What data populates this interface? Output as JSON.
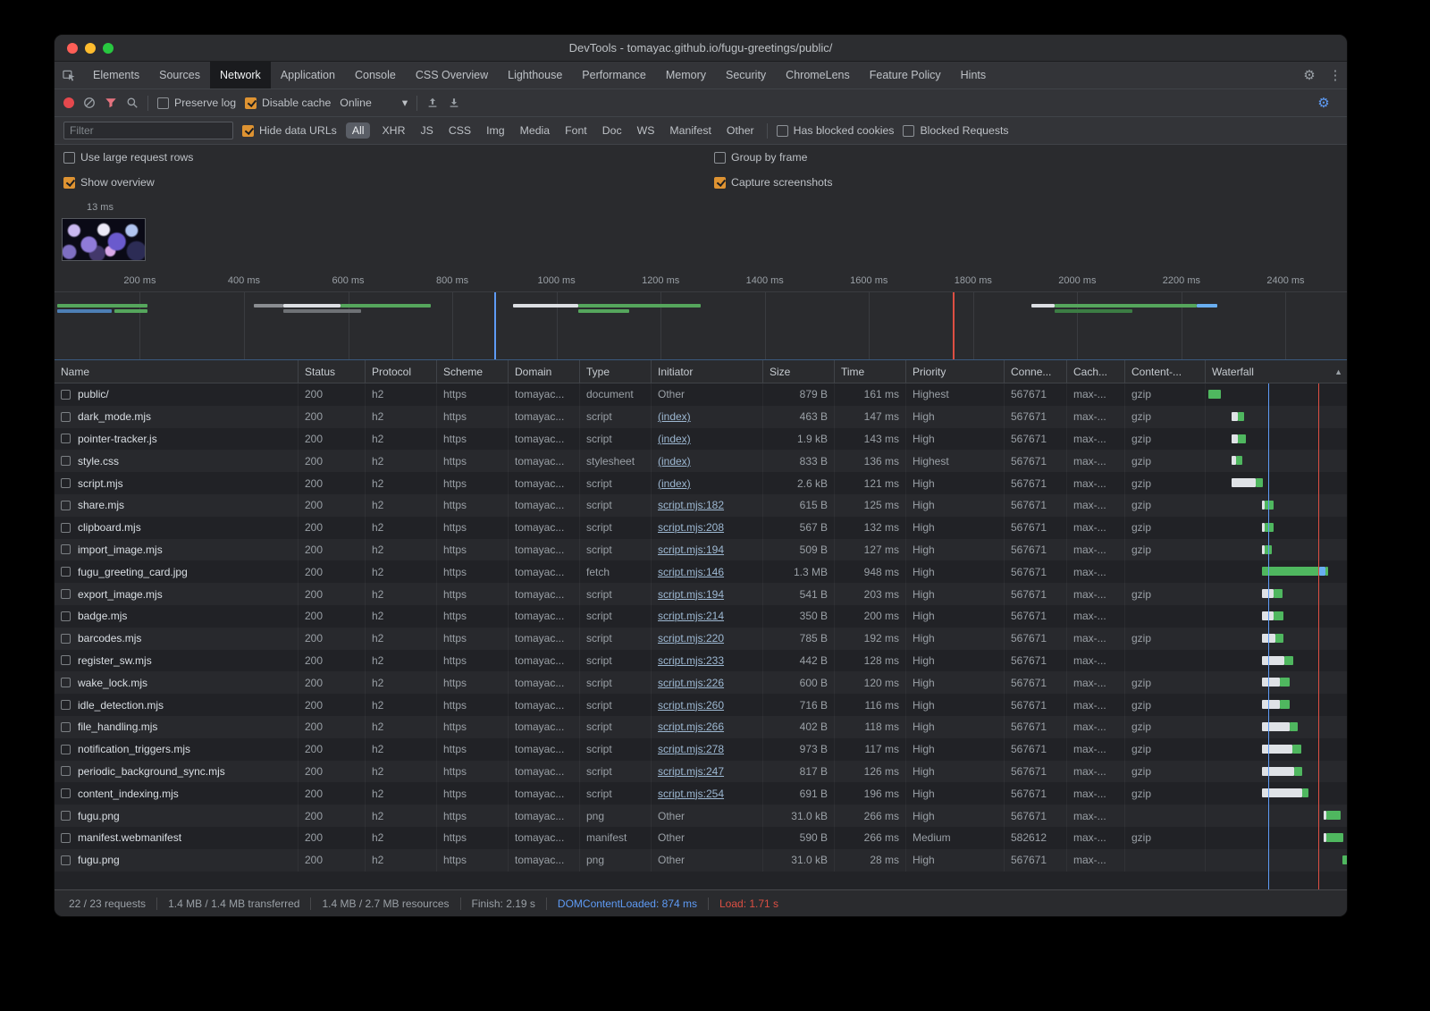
{
  "window": {
    "title": "DevTools - tomayac.github.io/fugu-greetings/public/"
  },
  "tabs": {
    "active": "Network",
    "items": [
      "Elements",
      "Sources",
      "Network",
      "Application",
      "Console",
      "CSS Overview",
      "Lighthouse",
      "Performance",
      "Memory",
      "Security",
      "ChromeLens",
      "Feature Policy",
      "Hints"
    ]
  },
  "toolbar": {
    "preserve_log": "Preserve log",
    "disable_cache": "Disable cache",
    "throttling": "Online"
  },
  "filterbar": {
    "placeholder": "Filter",
    "hide_data_urls": "Hide data URLs",
    "active_pill": "All",
    "pills": [
      "All",
      "XHR",
      "JS",
      "CSS",
      "Img",
      "Media",
      "Font",
      "Doc",
      "WS",
      "Manifest",
      "Other"
    ],
    "has_blocked_cookies": "Has blocked cookies",
    "blocked_requests": "Blocked Requests"
  },
  "options": {
    "use_large_request_rows": "Use large request rows",
    "group_by_frame": "Group by frame",
    "show_overview": "Show overview",
    "capture_screenshots": "Capture screenshots"
  },
  "checks": {
    "preserve_log": false,
    "disable_cache": true,
    "hide_data_urls": true,
    "use_large_request_rows": false,
    "group_by_frame": false,
    "show_overview": true,
    "capture_screenshots": true,
    "has_blocked_cookies": false,
    "blocked_requests": false
  },
  "filmstrip": {
    "time_label": "13 ms"
  },
  "overview": {
    "tick_labels": [
      "200 ms",
      "400 ms",
      "600 ms",
      "800 ms",
      "1000 ms",
      "1200 ms",
      "1400 ms",
      "1600 ms",
      "1800 ms",
      "2000 ms",
      "2200 ms",
      "2400 ms"
    ],
    "tick_first_pct": 6.6,
    "tick_step_pct": 8.06,
    "dcl_line_pct": 34,
    "load_line_pct": 69.5,
    "lanes": [
      {
        "segments": [
          {
            "l": 0.2,
            "w": 7,
            "c": "#55a65c"
          },
          {
            "l": 15.4,
            "w": 2.3,
            "c": "#8a8d91"
          },
          {
            "l": 17.7,
            "w": 4.4,
            "c": "#dcdfe3"
          },
          {
            "l": 22.1,
            "w": 7,
            "c": "#55a65c"
          },
          {
            "l": 35.5,
            "w": 5,
            "c": "#dcdfe3"
          },
          {
            "l": 40.5,
            "w": 9.5,
            "c": "#55a65c"
          },
          {
            "l": 75.6,
            "w": 1.8,
            "c": "#dcdfe3"
          },
          {
            "l": 77.4,
            "w": 11,
            "c": "#55a65c"
          },
          {
            "l": 88.4,
            "w": 1.6,
            "c": "#69aef0"
          }
        ]
      },
      {
        "segments": [
          {
            "l": 0.2,
            "w": 4.2,
            "c": "#4d7fb5"
          },
          {
            "l": 4.6,
            "w": 2.6,
            "c": "#55a65c"
          },
          {
            "l": 17.7,
            "w": 6,
            "c": "#6f7276"
          },
          {
            "l": 40.5,
            "w": 4,
            "c": "#55a65c"
          },
          {
            "l": 77.4,
            "w": 6,
            "c": "#3c7d44"
          }
        ]
      }
    ]
  },
  "table": {
    "columns": [
      "Name",
      "Status",
      "Protocol",
      "Scheme",
      "Domain",
      "Type",
      "Initiator",
      "Size",
      "Time",
      "Priority",
      "Conne...",
      "Cach...",
      "Content-...",
      "Waterfall"
    ],
    "sort_indicator": "▲",
    "dcl_line_pct": 44,
    "load_line_pct": 78.5,
    "rows": [
      {
        "name": "public/",
        "status": "200",
        "protocol": "h2",
        "scheme": "https",
        "domain": "tomayac...",
        "type": "document",
        "initiator": "Other",
        "initiator_link": false,
        "size": "879 B",
        "time": "161 ms",
        "priority": "Highest",
        "connection": "567671",
        "cache": "max-...",
        "content": "gzip",
        "wf": {
          "s": 2,
          "segs": [
            {
              "c": "g",
              "p": 9
            }
          ]
        }
      },
      {
        "name": "dark_mode.mjs",
        "status": "200",
        "protocol": "h2",
        "scheme": "https",
        "domain": "tomayac...",
        "type": "script",
        "initiator": "(index)",
        "initiator_link": true,
        "size": "463 B",
        "time": "147 ms",
        "priority": "High",
        "connection": "567671",
        "cache": "max-...",
        "content": "gzip",
        "wf": {
          "s": 18,
          "segs": [
            {
              "c": "w",
              "p": 4.5
            },
            {
              "c": "g",
              "p": 4.5
            }
          ]
        }
      },
      {
        "name": "pointer-tracker.js",
        "status": "200",
        "protocol": "h2",
        "scheme": "https",
        "domain": "tomayac...",
        "type": "script",
        "initiator": "(index)",
        "initiator_link": true,
        "size": "1.9 kB",
        "time": "143 ms",
        "priority": "High",
        "connection": "567671",
        "cache": "max-...",
        "content": "gzip",
        "wf": {
          "s": 18,
          "segs": [
            {
              "c": "w",
              "p": 4.5
            },
            {
              "c": "g",
              "p": 5.5
            }
          ]
        }
      },
      {
        "name": "style.css",
        "status": "200",
        "protocol": "h2",
        "scheme": "https",
        "domain": "tomayac...",
        "type": "stylesheet",
        "initiator": "(index)",
        "initiator_link": true,
        "size": "833 B",
        "time": "136 ms",
        "priority": "Highest",
        "connection": "567671",
        "cache": "max-...",
        "content": "gzip",
        "wf": {
          "s": 18,
          "segs": [
            {
              "c": "w",
              "p": 3.5
            },
            {
              "c": "g",
              "p": 4.5
            }
          ]
        }
      },
      {
        "name": "script.mjs",
        "status": "200",
        "protocol": "h2",
        "scheme": "https",
        "domain": "tomayac...",
        "type": "script",
        "initiator": "(index)",
        "initiator_link": true,
        "size": "2.6 kB",
        "time": "121 ms",
        "priority": "High",
        "connection": "567671",
        "cache": "max-...",
        "content": "gzip",
        "wf": {
          "s": 18,
          "segs": [
            {
              "c": "w",
              "p": 17
            },
            {
              "c": "g",
              "p": 5
            }
          ]
        }
      },
      {
        "name": "share.mjs",
        "status": "200",
        "protocol": "h2",
        "scheme": "https",
        "domain": "tomayac...",
        "type": "script",
        "initiator": "script.mjs:182",
        "initiator_link": true,
        "size": "615 B",
        "time": "125 ms",
        "priority": "High",
        "connection": "567671",
        "cache": "max-...",
        "content": "gzip",
        "wf": {
          "s": 39.5,
          "segs": [
            {
              "c": "w",
              "p": 2
            },
            {
              "c": "g",
              "p": 6
            }
          ]
        }
      },
      {
        "name": "clipboard.mjs",
        "status": "200",
        "protocol": "h2",
        "scheme": "https",
        "domain": "tomayac...",
        "type": "script",
        "initiator": "script.mjs:208",
        "initiator_link": true,
        "size": "567 B",
        "time": "132 ms",
        "priority": "High",
        "connection": "567671",
        "cache": "max-...",
        "content": "gzip",
        "wf": {
          "s": 39.5,
          "segs": [
            {
              "c": "w",
              "p": 2
            },
            {
              "c": "g",
              "p": 6
            }
          ]
        }
      },
      {
        "name": "import_image.mjs",
        "status": "200",
        "protocol": "h2",
        "scheme": "https",
        "domain": "tomayac...",
        "type": "script",
        "initiator": "script.mjs:194",
        "initiator_link": true,
        "size": "509 B",
        "time": "127 ms",
        "priority": "High",
        "connection": "567671",
        "cache": "max-...",
        "content": "gzip",
        "wf": {
          "s": 39.5,
          "segs": [
            {
              "c": "w",
              "p": 2
            },
            {
              "c": "g",
              "p": 5
            }
          ]
        }
      },
      {
        "name": "fugu_greeting_card.jpg",
        "status": "200",
        "protocol": "h2",
        "scheme": "https",
        "domain": "tomayac...",
        "type": "fetch",
        "initiator": "script.mjs:146",
        "initiator_link": true,
        "size": "1.3 MB",
        "time": "948 ms",
        "priority": "High",
        "connection": "567671",
        "cache": "max-...",
        "content": "",
        "wf": {
          "s": 39.5,
          "segs": [
            {
              "c": "g",
              "p": 40.5
            },
            {
              "c": "b",
              "p": 4
            },
            {
              "c": "g",
              "p": 2
            }
          ]
        }
      },
      {
        "name": "export_image.mjs",
        "status": "200",
        "protocol": "h2",
        "scheme": "https",
        "domain": "tomayac...",
        "type": "script",
        "initiator": "script.mjs:194",
        "initiator_link": true,
        "size": "541 B",
        "time": "203 ms",
        "priority": "High",
        "connection": "567671",
        "cache": "max-...",
        "content": "gzip",
        "wf": {
          "s": 39.5,
          "segs": [
            {
              "c": "w",
              "p": 8.5
            },
            {
              "c": "g",
              "p": 6
            }
          ]
        }
      },
      {
        "name": "badge.mjs",
        "status": "200",
        "protocol": "h2",
        "scheme": "https",
        "domain": "tomayac...",
        "type": "script",
        "initiator": "script.mjs:214",
        "initiator_link": true,
        "size": "350 B",
        "time": "200 ms",
        "priority": "High",
        "connection": "567671",
        "cache": "max-...",
        "content": "",
        "wf": {
          "s": 39.5,
          "segs": [
            {
              "c": "w",
              "p": 8.5
            },
            {
              "c": "g",
              "p": 6.5
            }
          ]
        }
      },
      {
        "name": "barcodes.mjs",
        "status": "200",
        "protocol": "h2",
        "scheme": "https",
        "domain": "tomayac...",
        "type": "script",
        "initiator": "script.mjs:220",
        "initiator_link": true,
        "size": "785 B",
        "time": "192 ms",
        "priority": "High",
        "connection": "567671",
        "cache": "max-...",
        "content": "gzip",
        "wf": {
          "s": 39.5,
          "segs": [
            {
              "c": "w",
              "p": 9.5
            },
            {
              "c": "g",
              "p": 6
            }
          ]
        }
      },
      {
        "name": "register_sw.mjs",
        "status": "200",
        "protocol": "h2",
        "scheme": "https",
        "domain": "tomayac...",
        "type": "script",
        "initiator": "script.mjs:233",
        "initiator_link": true,
        "size": "442 B",
        "time": "128 ms",
        "priority": "High",
        "connection": "567671",
        "cache": "max-...",
        "content": "",
        "wf": {
          "s": 39.5,
          "segs": [
            {
              "c": "w",
              "p": 16
            },
            {
              "c": "g",
              "p": 6
            }
          ]
        }
      },
      {
        "name": "wake_lock.mjs",
        "status": "200",
        "protocol": "h2",
        "scheme": "https",
        "domain": "tomayac...",
        "type": "script",
        "initiator": "script.mjs:226",
        "initiator_link": true,
        "size": "600 B",
        "time": "120 ms",
        "priority": "High",
        "connection": "567671",
        "cache": "max-...",
        "content": "gzip",
        "wf": {
          "s": 39.5,
          "segs": [
            {
              "c": "w",
              "p": 13
            },
            {
              "c": "g",
              "p": 6.5
            }
          ]
        }
      },
      {
        "name": "idle_detection.mjs",
        "status": "200",
        "protocol": "h2",
        "scheme": "https",
        "domain": "tomayac...",
        "type": "script",
        "initiator": "script.mjs:260",
        "initiator_link": true,
        "size": "716 B",
        "time": "116 ms",
        "priority": "High",
        "connection": "567671",
        "cache": "max-...",
        "content": "gzip",
        "wf": {
          "s": 39.5,
          "segs": [
            {
              "c": "w",
              "p": 13
            },
            {
              "c": "g",
              "p": 6.5
            }
          ]
        }
      },
      {
        "name": "file_handling.mjs",
        "status": "200",
        "protocol": "h2",
        "scheme": "https",
        "domain": "tomayac...",
        "type": "script",
        "initiator": "script.mjs:266",
        "initiator_link": true,
        "size": "402 B",
        "time": "118 ms",
        "priority": "High",
        "connection": "567671",
        "cache": "max-...",
        "content": "gzip",
        "wf": {
          "s": 39.5,
          "segs": [
            {
              "c": "w",
              "p": 19.5
            },
            {
              "c": "g",
              "p": 6
            }
          ]
        }
      },
      {
        "name": "notification_triggers.mjs",
        "status": "200",
        "protocol": "h2",
        "scheme": "https",
        "domain": "tomayac...",
        "type": "script",
        "initiator": "script.mjs:278",
        "initiator_link": true,
        "size": "973 B",
        "time": "117 ms",
        "priority": "High",
        "connection": "567671",
        "cache": "max-...",
        "content": "gzip",
        "wf": {
          "s": 39.5,
          "segs": [
            {
              "c": "w",
              "p": 21.5
            },
            {
              "c": "g",
              "p": 6
            }
          ]
        }
      },
      {
        "name": "periodic_background_sync.mjs",
        "status": "200",
        "protocol": "h2",
        "scheme": "https",
        "domain": "tomayac...",
        "type": "script",
        "initiator": "script.mjs:247",
        "initiator_link": true,
        "size": "817 B",
        "time": "126 ms",
        "priority": "High",
        "connection": "567671",
        "cache": "max-...",
        "content": "gzip",
        "wf": {
          "s": 39.5,
          "segs": [
            {
              "c": "w",
              "p": 22.5
            },
            {
              "c": "g",
              "p": 6
            }
          ]
        }
      },
      {
        "name": "content_indexing.mjs",
        "status": "200",
        "protocol": "h2",
        "scheme": "https",
        "domain": "tomayac...",
        "type": "script",
        "initiator": "script.mjs:254",
        "initiator_link": true,
        "size": "691 B",
        "time": "196 ms",
        "priority": "High",
        "connection": "567671",
        "cache": "max-...",
        "content": "gzip",
        "wf": {
          "s": 39.5,
          "segs": [
            {
              "c": "w",
              "p": 28.5
            },
            {
              "c": "g",
              "p": 4.5
            }
          ]
        }
      },
      {
        "name": "fugu.png",
        "status": "200",
        "protocol": "h2",
        "scheme": "https",
        "domain": "tomayac...",
        "type": "png",
        "initiator": "Other",
        "initiator_link": false,
        "size": "31.0 kB",
        "time": "266 ms",
        "priority": "High",
        "connection": "567671",
        "cache": "max-...",
        "content": "",
        "wf": {
          "s": 83,
          "segs": [
            {
              "c": "w",
              "p": 2
            },
            {
              "c": "g",
              "p": 10
            }
          ]
        }
      },
      {
        "name": "manifest.webmanifest",
        "status": "200",
        "protocol": "h2",
        "scheme": "https",
        "domain": "tomayac...",
        "type": "manifest",
        "initiator": "Other",
        "initiator_link": false,
        "size": "590 B",
        "time": "266 ms",
        "priority": "Medium",
        "connection": "582612",
        "cache": "max-...",
        "content": "gzip",
        "wf": {
          "s": 83,
          "segs": [
            {
              "c": "w",
              "p": 2
            },
            {
              "c": "g",
              "p": 12
            }
          ]
        }
      },
      {
        "name": "fugu.png",
        "status": "200",
        "protocol": "h2",
        "scheme": "https",
        "domain": "tomayac...",
        "type": "png",
        "initiator": "Other",
        "initiator_link": false,
        "size": "31.0 kB",
        "time": "28 ms",
        "priority": "High",
        "connection": "567671",
        "cache": "max-...",
        "content": "",
        "wf": {
          "s": 96.5,
          "segs": [
            {
              "c": "g",
              "p": 5
            }
          ]
        }
      }
    ]
  },
  "statusbar": {
    "requests": "22 / 23 requests",
    "transferred": "1.4 MB / 1.4 MB transferred",
    "resources": "1.4 MB / 2.7 MB resources",
    "finish": "Finish: 2.19 s",
    "dom_content_loaded": "DOMContentLoaded: 874 ms",
    "load": "Load: 1.71 s"
  },
  "icons": {
    "dropdown_arrow": "▾",
    "gear": "⚙",
    "kebab": "⋮"
  },
  "colors": {
    "accent_checkbox": "#de9332",
    "record_red": "#e5484d",
    "filter_active": "#e5737f",
    "link": "#9db8d2",
    "dcl_blue": "#5e9bf5",
    "load_red": "#dd4f43",
    "wf_green": "#4fb75f",
    "wf_white": "#dfe2e6",
    "wf_blue": "#69aef0"
  }
}
